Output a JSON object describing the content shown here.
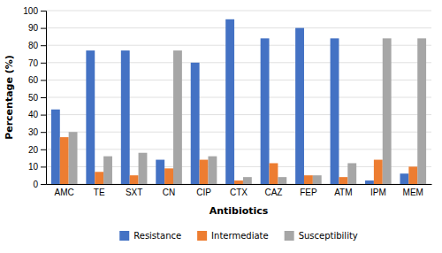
{
  "chart_data": {
    "type": "bar",
    "categories": [
      "AMC",
      "TE",
      "SXT",
      "CN",
      "CIP",
      "CTX",
      "CAZ",
      "FEP",
      "ATM",
      "IPM",
      "MEM"
    ],
    "series": [
      {
        "name": "Resistance",
        "color": "#4472C4",
        "values": [
          43,
          77,
          77,
          14,
          70,
          95,
          84,
          90,
          84,
          2,
          6
        ]
      },
      {
        "name": "Intermediate",
        "color": "#ED7D31",
        "values": [
          27,
          7,
          5,
          9,
          14,
          2,
          12,
          5,
          4,
          14,
          10
        ]
      },
      {
        "name": "Susceptibility",
        "color": "#A6A6A6",
        "values": [
          30,
          16,
          18,
          77,
          16,
          4,
          4,
          5,
          12,
          84,
          84
        ]
      }
    ],
    "xlabel": "Antibiotics",
    "ylabel": "Percentage (%)",
    "ylim": [
      0,
      100
    ],
    "yticks": [
      0,
      10,
      20,
      30,
      40,
      50,
      60,
      70,
      80,
      90,
      100
    ],
    "grid": true,
    "legend": "bottom"
  }
}
